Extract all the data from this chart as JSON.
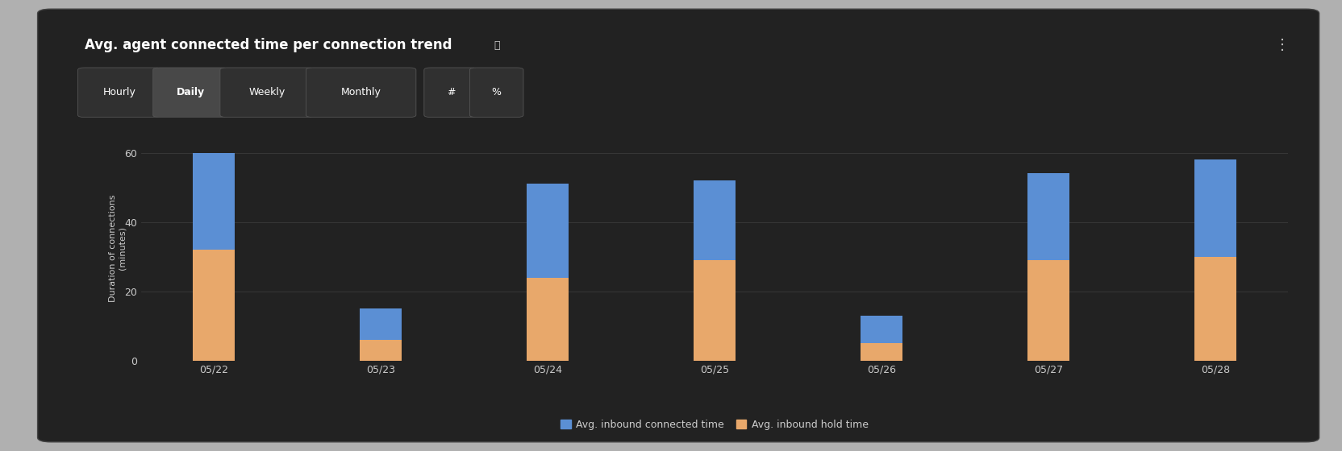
{
  "title": "Avg. agent connected time per connection trend",
  "info_icon": "ⓘ",
  "three_dot": "⋮",
  "ylabel": "Duration of connections\n(minutes)",
  "categories": [
    "05/22",
    "05/23",
    "05/24",
    "05/25",
    "05/26",
    "05/27",
    "05/28"
  ],
  "connected_time": [
    28,
    9,
    27,
    23,
    8,
    25,
    28
  ],
  "hold_time": [
    32,
    6,
    24,
    29,
    5,
    29,
    30
  ],
  "connected_color": "#5b8fd4",
  "hold_color": "#e8a86b",
  "figure_bg_color": "#b0b0b0",
  "panel_bg_color": "#222222",
  "axes_bg_color": "#222222",
  "text_color": "#cccccc",
  "white_color": "#ffffff",
  "grid_color": "#3a3a3a",
  "button_active_bg": "#484848",
  "button_inactive_bg": "#303030",
  "button_border_color": "#555555",
  "ylim": [
    0,
    65
  ],
  "yticks": [
    0,
    20,
    40,
    60
  ],
  "bar_width": 0.25,
  "legend_labels": [
    "Avg. inbound connected time",
    "Avg. inbound hold time"
  ],
  "buttons": [
    "Hourly",
    "Daily",
    "Weekly",
    "Monthly",
    "#",
    "%"
  ],
  "active_button": "Daily",
  "title_fontsize": 12,
  "axis_label_fontsize": 8,
  "tick_fontsize": 9,
  "legend_fontsize": 9,
  "button_fontsize": 9
}
